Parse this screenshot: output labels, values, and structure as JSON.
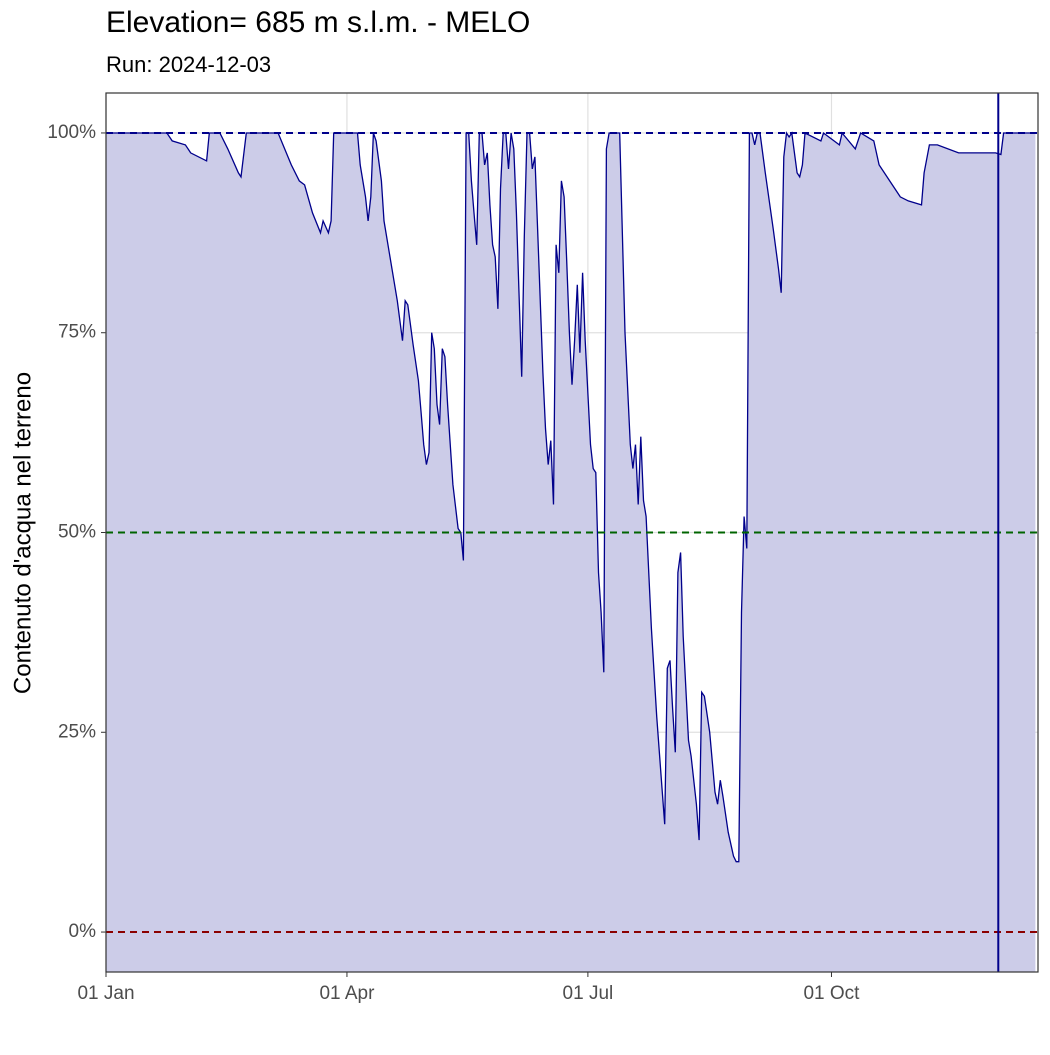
{
  "chart_data": {
    "type": "area",
    "title": "Elevation= 685 m s.l.m. - MELO",
    "subtitle": "Run: 2024-12-03",
    "y_label": "Contenuto d'acqua nel terreno",
    "color": "#00008b",
    "fill": "#cccce8",
    "grid": true,
    "x": [
      0,
      20,
      23,
      25,
      30,
      32,
      38,
      39,
      43,
      46,
      50,
      51,
      53,
      60,
      65,
      70,
      73,
      75,
      78,
      81,
      82,
      84,
      85,
      86,
      95,
      96,
      98,
      99,
      100,
      101,
      102,
      104,
      105,
      107,
      110,
      112,
      113,
      114,
      116,
      118,
      119,
      120,
      121,
      122,
      123,
      124,
      125,
      126,
      127,
      128,
      129,
      131,
      133,
      134,
      135,
      136,
      137,
      138,
      139,
      140,
      141,
      142,
      143,
      144,
      145,
      146,
      147,
      148,
      149,
      150,
      151,
      152,
      153,
      154,
      155,
      156,
      157,
      158,
      159,
      160,
      161,
      162,
      163,
      165,
      166,
      167,
      168,
      169,
      170,
      171,
      172,
      173,
      174,
      175,
      176,
      177,
      178,
      179,
      180,
      181,
      183,
      184,
      185,
      186,
      187,
      188,
      189,
      190,
      194,
      196,
      198,
      199,
      200,
      201,
      202,
      203,
      204,
      206,
      208,
      210,
      211,
      212,
      213,
      214,
      215,
      216,
      217,
      218,
      220,
      221,
      223,
      224,
      225,
      226,
      228,
      230,
      231,
      232,
      233,
      235,
      237,
      238,
      239,
      240,
      241,
      242,
      243,
      244,
      245,
      246,
      247,
      249,
      252,
      254,
      255,
      256,
      257,
      258,
      259,
      261,
      262,
      263,
      264,
      270,
      271,
      277,
      278,
      283,
      285,
      290,
      292,
      296,
      300,
      303,
      308,
      309,
      311,
      314,
      322,
      336,
      338,
      339,
      351
    ],
    "values": [
      100,
      100,
      100,
      99,
      98.5,
      97.5,
      96.5,
      100,
      100,
      98,
      95,
      94.5,
      100,
      100,
      100,
      96,
      94,
      93.5,
      90,
      87.5,
      89,
      87.5,
      89,
      100,
      100,
      96,
      92,
      89,
      92,
      100,
      99,
      94,
      89,
      85,
      79,
      74,
      79,
      78.5,
      73.5,
      69,
      65,
      61,
      58.5,
      60,
      75,
      73,
      66,
      63.5,
      73,
      72,
      66,
      56,
      50.5,
      50,
      46.5,
      100,
      100,
      94,
      90,
      86,
      100,
      100,
      96,
      97.5,
      91,
      86,
      84.5,
      78,
      93,
      100,
      100,
      95.5,
      100,
      98,
      90,
      80,
      69.5,
      87,
      100,
      100,
      95.5,
      97,
      88,
      70,
      63,
      58.5,
      61.5,
      53.5,
      86,
      82.5,
      94,
      92,
      84,
      75,
      68.5,
      74,
      81,
      72.5,
      82.5,
      74,
      61,
      58,
      57.5,
      45,
      40,
      32.5,
      98,
      100,
      100,
      75,
      61,
      58,
      61,
      53.5,
      62,
      54,
      52,
      38,
      27,
      18,
      13.5,
      33,
      34,
      28,
      22.5,
      45,
      47.5,
      37,
      24,
      22,
      16,
      11.5,
      30,
      29.5,
      25,
      17.5,
      16,
      19,
      17,
      12.5,
      9.5,
      8.8,
      8.8,
      40,
      52,
      48,
      100,
      100,
      98.5,
      100,
      100,
      95,
      88,
      83,
      80,
      97,
      100,
      99.5,
      100,
      95,
      94.5,
      96,
      100,
      99,
      100,
      98.5,
      100,
      98,
      100,
      99,
      96,
      94,
      92,
      91.5,
      91,
      95,
      98.5,
      98.5,
      97.5,
      97.5,
      97.3,
      100,
      100
    ],
    "xlim": [
      0,
      352
    ],
    "xticks": [
      {
        "value": 0,
        "label": "01 Jan"
      },
      {
        "value": 91,
        "label": "01 Apr"
      },
      {
        "value": 182,
        "label": "01 Jul"
      },
      {
        "value": 274,
        "label": "01 Oct"
      }
    ],
    "ylim": [
      -5,
      105
    ],
    "yticks": [
      {
        "value": 0,
        "label": "0%"
      },
      {
        "value": 25,
        "label": "25%"
      },
      {
        "value": 50,
        "label": "50%"
      },
      {
        "value": 75,
        "label": "75%"
      },
      {
        "value": 100,
        "label": "100%"
      }
    ],
    "hlines": [
      {
        "value": 100,
        "color": "#00008b"
      },
      {
        "value": 50,
        "color": "#006400"
      },
      {
        "value": 0,
        "color": "#8b0000"
      }
    ],
    "vline": {
      "value": 337,
      "color": "#00008b"
    }
  }
}
